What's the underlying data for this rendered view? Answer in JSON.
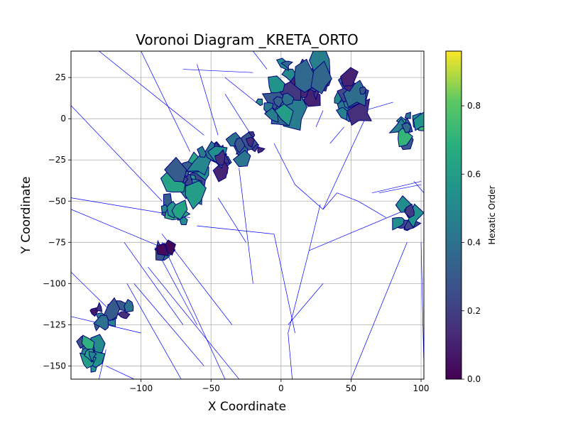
{
  "chart_data": {
    "type": "voronoi",
    "title": "Voronoi Diagram _KRETA_ORTO",
    "xlabel": "X Coordinate",
    "ylabel": "Y Coordinate",
    "xlim": [
      -150,
      102
    ],
    "ylim": [
      -158,
      41
    ],
    "xticks": [
      -100,
      -50,
      0,
      50,
      100
    ],
    "yticks": [
      25,
      0,
      -25,
      -50,
      -75,
      -100,
      -125,
      -150
    ],
    "grid": true,
    "colorbar": {
      "label": "Hexatic Order",
      "range": [
        0.0,
        0.96
      ],
      "ticks": [
        0.0,
        0.2,
        0.4,
        0.6,
        0.8
      ],
      "colormap": "viridis"
    },
    "edge_color": "#0000ff",
    "cell_edge_color": "#000080",
    "clusters": [
      {
        "x": 12,
        "y": 22,
        "r": 22,
        "order": 0.3
      },
      {
        "x": -4,
        "y": 8,
        "r": 14,
        "order": 0.4
      },
      {
        "x": 50,
        "y": 15,
        "r": 16,
        "order": 0.35
      },
      {
        "x": 90,
        "y": -5,
        "r": 12,
        "order": 0.5
      },
      {
        "x": -62,
        "y": -36,
        "r": 16,
        "order": 0.45
      },
      {
        "x": -45,
        "y": -22,
        "r": 12,
        "order": 0.3
      },
      {
        "x": -25,
        "y": -18,
        "r": 12,
        "order": 0.35
      },
      {
        "x": -85,
        "y": -78,
        "r": 8,
        "order": 0.2
      },
      {
        "x": -75,
        "y": -56,
        "r": 10,
        "order": 0.5
      },
      {
        "x": 92,
        "y": -57,
        "r": 10,
        "order": 0.4
      },
      {
        "x": -120,
        "y": -120,
        "r": 14,
        "order": 0.3
      },
      {
        "x": -135,
        "y": -140,
        "r": 12,
        "order": 0.45
      }
    ],
    "ridges": [
      [
        [
          -150,
          8
        ],
        [
          -85,
          -50
        ]
      ],
      [
        [
          -150,
          -55
        ],
        [
          -85,
          -78
        ]
      ],
      [
        [
          -150,
          -48
        ],
        [
          -65,
          -60
        ]
      ],
      [
        [
          -150,
          -93
        ],
        [
          -120,
          -118
        ]
      ],
      [
        [
          -150,
          -120
        ],
        [
          -100,
          -130
        ]
      ],
      [
        [
          -130,
          41
        ],
        [
          -55,
          -10
        ]
      ],
      [
        [
          -100,
          41
        ],
        [
          -65,
          -20
        ]
      ],
      [
        [
          -60,
          33
        ],
        [
          -45,
          -10
        ]
      ],
      [
        [
          -40,
          25
        ],
        [
          -15,
          8
        ]
      ],
      [
        [
          -20,
          41
        ],
        [
          -10,
          30
        ]
      ],
      [
        [
          -70,
          30
        ],
        [
          -20,
          28
        ]
      ],
      [
        [
          -40,
          15
        ],
        [
          -25,
          -5
        ]
      ],
      [
        [
          -30,
          -30
        ],
        [
          -20,
          -100
        ]
      ],
      [
        [
          -45,
          -48
        ],
        [
          -25,
          -75
        ]
      ],
      [
        [
          -60,
          -65
        ],
        [
          -5,
          -70
        ]
      ],
      [
        [
          -85,
          -70
        ],
        [
          -35,
          -125
        ]
      ],
      [
        [
          -112,
          -75
        ],
        [
          -70,
          -125
        ]
      ],
      [
        [
          -85,
          -75
        ],
        [
          -40,
          -158
        ]
      ],
      [
        [
          -125,
          -150
        ],
        [
          -105,
          -158
        ]
      ],
      [
        [
          -105,
          -100
        ],
        [
          -55,
          -150
        ]
      ],
      [
        [
          -90,
          -78
        ],
        [
          -60,
          -125
        ]
      ],
      [
        [
          -95,
          -90
        ],
        [
          -30,
          -158
        ]
      ],
      [
        [
          -110,
          -100
        ],
        [
          -70,
          -160
        ]
      ],
      [
        [
          -25,
          -5
        ],
        [
          -15,
          -18
        ]
      ],
      [
        [
          -5,
          -15
        ],
        [
          10,
          -40
        ]
      ],
      [
        [
          10,
          -40
        ],
        [
          30,
          -55
        ]
      ],
      [
        [
          30,
          -55
        ],
        [
          40,
          -45
        ]
      ],
      [
        [
          28,
          -52
        ],
        [
          20,
          -80
        ]
      ],
      [
        [
          20,
          -80
        ],
        [
          5,
          -130
        ]
      ],
      [
        [
          5,
          -130
        ],
        [
          8,
          -158
        ]
      ],
      [
        [
          5,
          -125
        ],
        [
          30,
          -100
        ]
      ],
      [
        [
          40,
          -45
        ],
        [
          55,
          -50
        ]
      ],
      [
        [
          55,
          -50
        ],
        [
          75,
          -60
        ]
      ],
      [
        [
          30,
          -55
        ],
        [
          60,
          0
        ]
      ],
      [
        [
          25,
          -5
        ],
        [
          30,
          5
        ]
      ],
      [
        [
          35,
          -15
        ],
        [
          45,
          -5
        ]
      ],
      [
        [
          -130,
          -158
        ],
        [
          -125,
          -140
        ]
      ],
      [
        [
          -5,
          -70
        ],
        [
          10,
          -130
        ]
      ],
      [
        [
          20,
          -80
        ],
        [
          90,
          -55
        ]
      ],
      [
        [
          50,
          -158
        ],
        [
          90,
          -75
        ]
      ],
      [
        [
          65,
          -45
        ],
        [
          100,
          -38
        ]
      ],
      [
        [
          95,
          -38
        ],
        [
          102,
          -45
        ]
      ],
      [
        [
          60,
          5
        ],
        [
          80,
          10
        ]
      ],
      [
        [
          70,
          -45
        ],
        [
          100,
          -40
        ]
      ],
      [
        [
          100,
          -75
        ],
        [
          102,
          -150
        ]
      ]
    ]
  }
}
